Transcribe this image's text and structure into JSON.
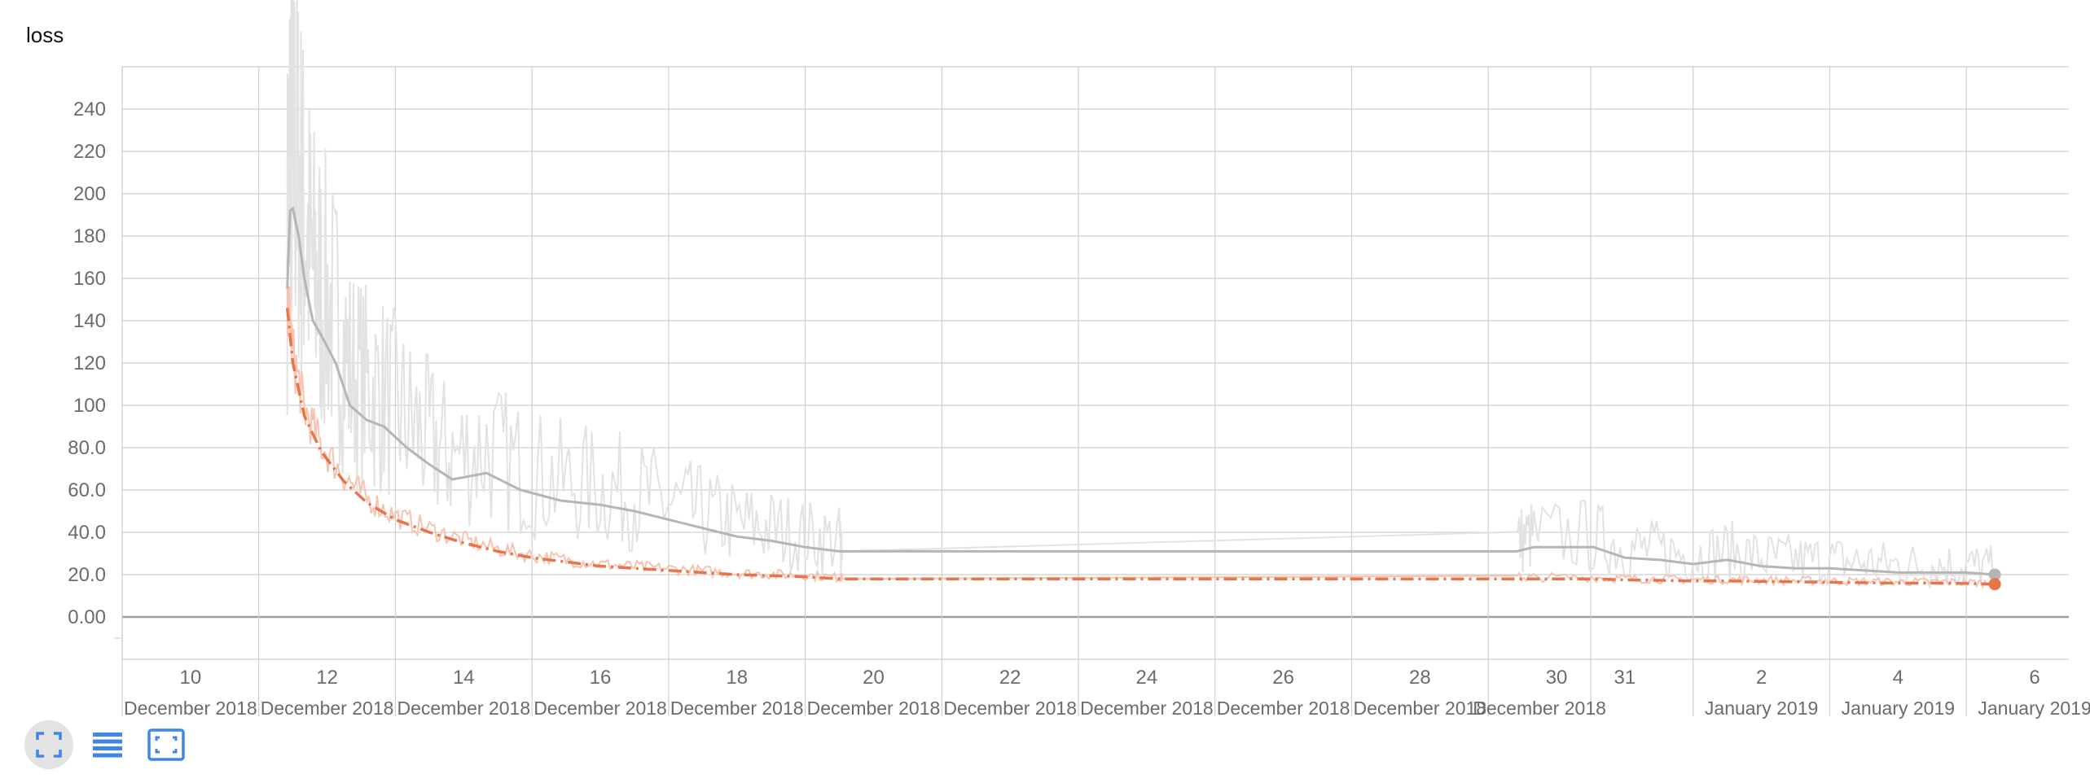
{
  "colors": {
    "raw_gray": "#e2e2e2",
    "smooth_gray": "#b5b5b5",
    "raw_orange": "#f7c3b0",
    "smooth_orange": "#e8744a",
    "grid": "#cfcfcf",
    "zero": "#9e9e9e",
    "toolbar_icon": "#3f86e5"
  },
  "toolbar": {
    "icons": [
      "fullscreen-icon",
      "list-icon",
      "fit-domain-icon"
    ]
  },
  "chart_data": {
    "type": "line",
    "title": "loss",
    "xlabel": "",
    "ylabel": "",
    "x_axis_type": "date",
    "xlim": [
      "2018-12-09",
      "2019-01-06T12:00"
    ],
    "ylim": [
      -20,
      260
    ],
    "y_ticks": [
      0,
      20,
      40,
      60,
      80,
      100,
      120,
      140,
      160,
      180,
      200,
      220,
      240
    ],
    "y_tick_labels": [
      "0.00",
      "20.0",
      "40.0",
      "60.0",
      "80.0",
      "100",
      "120",
      "140",
      "160",
      "180",
      "200",
      "220",
      "240"
    ],
    "x_ticks": [
      {
        "date": "2018-12-10",
        "day": "10",
        "month": "December 2018"
      },
      {
        "date": "2018-12-12",
        "day": "12",
        "month": "December 2018"
      },
      {
        "date": "2018-12-14",
        "day": "14",
        "month": "December 2018"
      },
      {
        "date": "2018-12-16",
        "day": "16",
        "month": "December 2018"
      },
      {
        "date": "2018-12-18",
        "day": "18",
        "month": "December 2018"
      },
      {
        "date": "2018-12-20",
        "day": "20",
        "month": "December 2018"
      },
      {
        "date": "2018-12-22",
        "day": "22",
        "month": "December 2018"
      },
      {
        "date": "2018-12-24",
        "day": "24",
        "month": "December 2018"
      },
      {
        "date": "2018-12-26",
        "day": "26",
        "month": "December 2018"
      },
      {
        "date": "2018-12-28",
        "day": "28",
        "month": "December 2018"
      },
      {
        "date": "2018-12-30",
        "day": "30",
        "month": "December 2018"
      },
      {
        "date": "2018-12-31",
        "day": "31",
        "month": ""
      },
      {
        "date": "2019-01-02",
        "day": "2",
        "month": "January 2019"
      },
      {
        "date": "2019-01-04",
        "day": "4",
        "month": "January 2019"
      },
      {
        "date": "2019-01-06",
        "day": "6",
        "month": "January 2019"
      }
    ],
    "grid": true,
    "legend": "none",
    "series": [
      {
        "color": "#b5b5b5",
        "x": [
          "2018-12-11T10:00",
          "2018-12-11T11:00",
          "2018-12-11T12:00",
          "2018-12-11T14:00",
          "2018-12-11T16:00",
          "2018-12-11T19:00",
          "2018-12-11T22:00",
          "2018-12-12T03:00",
          "2018-12-12T08:00",
          "2018-12-12T14:00",
          "2018-12-12T20:00",
          "2018-12-13T04:00",
          "2018-12-13T12:00",
          "2018-12-13T20:00",
          "2018-12-14T08:00",
          "2018-12-14T20:00",
          "2018-12-15T10:00",
          "2018-12-16T00:00",
          "2018-12-16T12:00",
          "2018-12-17T00:00",
          "2018-12-17T12:00",
          "2018-12-18T00:00",
          "2018-12-18T12:00",
          "2018-12-19T00:00",
          "2018-12-19T12:00",
          "2018-12-19T13:00",
          "2018-12-29T10:00",
          "2018-12-29T16:00",
          "2018-12-30T13:00",
          "2018-12-31T00:00",
          "2018-12-31T12:00",
          "2019-01-01T00:00",
          "2019-01-01T12:00",
          "2019-01-02T00:00",
          "2019-01-02T12:00",
          "2019-01-03T00:00",
          "2019-01-03T12:00",
          "2019-01-04T00:00",
          "2019-01-04T12:00",
          "2019-01-05T00:00",
          "2019-01-05T10:00"
        ],
        "y": [
          155,
          192,
          193,
          180,
          160,
          140,
          133,
          120,
          100,
          93,
          90,
          80,
          72,
          65,
          68,
          60,
          55,
          53,
          50,
          46,
          42,
          38,
          36,
          33,
          31,
          31,
          31,
          33,
          33,
          28,
          27,
          25,
          27,
          24,
          23,
          23,
          22,
          21,
          21,
          21,
          20
        ]
      },
      {
        "color": "#e8744a",
        "x": [
          "2018-12-11T10:00",
          "2018-12-11T12:00",
          "2018-12-11T16:00",
          "2018-12-11T22:00",
          "2018-12-12T06:00",
          "2018-12-12T14:00",
          "2018-12-13T00:00",
          "2018-12-13T12:00",
          "2018-12-14T00:00",
          "2018-12-14T12:00",
          "2018-12-15T00:00",
          "2018-12-15T12:00",
          "2018-12-16T00:00",
          "2018-12-16T12:00",
          "2018-12-17T00:00",
          "2018-12-17T12:00",
          "2018-12-18T00:00",
          "2018-12-18T12:00",
          "2018-12-19T00:00",
          "2018-12-19T12:00",
          "2018-12-19T13:00",
          "2018-12-29T10:00",
          "2018-12-29T16:00",
          "2018-12-30T14:00",
          "2018-12-31T00:00",
          "2018-12-31T12:00",
          "2019-01-01T00:00",
          "2019-01-01T12:00",
          "2019-01-02T00:00",
          "2019-01-02T12:00",
          "2019-01-03T00:00",
          "2019-01-03T12:00",
          "2019-01-04T00:00",
          "2019-01-04T12:00",
          "2019-01-05T00:00",
          "2019-01-05T10:00"
        ],
        "y": [
          146,
          120,
          95,
          78,
          64,
          54,
          46,
          40,
          35,
          31,
          28,
          26,
          24,
          23,
          22,
          21,
          20,
          19.5,
          19,
          18,
          18,
          18,
          18,
          18,
          17.5,
          17.3,
          17,
          17,
          16.8,
          16.6,
          16.4,
          16.2,
          16,
          16,
          15.8,
          15.5
        ]
      }
    ]
  }
}
